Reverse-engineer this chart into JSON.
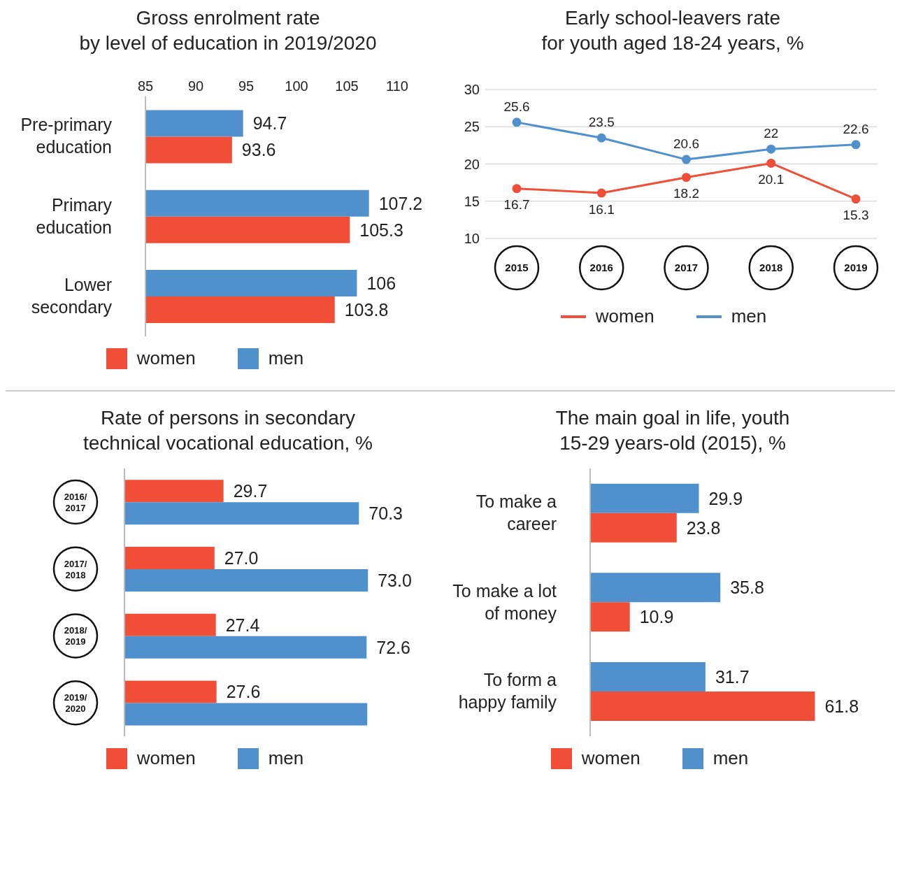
{
  "chart_data": [
    {
      "type": "bar",
      "orientation": "horizontal",
      "title": "Gross enrolment rate\nby level of education in 2019/2020",
      "categories": [
        "Pre-primary education",
        "Primary education",
        "Lower secondary"
      ],
      "series": [
        {
          "name": "men",
          "color": "#4f90cd",
          "values": [
            94.7,
            107.2,
            106
          ]
        },
        {
          "name": "women",
          "color": "#f04e37",
          "values": [
            93.6,
            105.3,
            103.8
          ]
        }
      ],
      "xlim": [
        85,
        110
      ],
      "xticks": [
        85,
        90,
        95,
        100,
        105,
        110
      ],
      "data_labels": true,
      "legend": "bottom"
    },
    {
      "type": "line",
      "title": "Early school-leavers rate\nfor youth aged 18-24 years, %",
      "categories": [
        "2015",
        "2016",
        "2017",
        "2018",
        "2019"
      ],
      "series": [
        {
          "name": "women",
          "color": "#f04e37",
          "values": [
            16.7,
            16.1,
            18.2,
            20.1,
            15.3
          ]
        },
        {
          "name": "men",
          "color": "#4f90cd",
          "values": [
            25.6,
            23.5,
            20.6,
            22,
            22.6
          ]
        }
      ],
      "ylim": [
        10,
        30
      ],
      "yticks": [
        10,
        15,
        20,
        25,
        30
      ],
      "grid": "y",
      "marker": "circle",
      "data_labels": true,
      "legend": "bottom right"
    },
    {
      "type": "bar",
      "orientation": "horizontal",
      "title": "Rate of persons in secondary\ntechnical vocational education, %",
      "categories": [
        "2016/2017",
        "2017/2018",
        "2018/2019",
        "2019/2020"
      ],
      "series": [
        {
          "name": "women",
          "color": "#f04e37",
          "values": [
            29.7,
            27.0,
            27.4,
            27.6
          ],
          "value_labels": [
            "29.7",
            "27.0",
            "27.4",
            "27.6"
          ]
        },
        {
          "name": "men",
          "color": "#4f90cd",
          "values": [
            70.3,
            73.0,
            72.6,
            72.8
          ],
          "value_labels": [
            "70.3",
            "73.0",
            "72.6",
            null
          ]
        }
      ],
      "tick_labels": "y",
      "legend": "bottom"
    },
    {
      "type": "bar",
      "orientation": "horizontal",
      "title": "The main goal in life, youth\n15-29 years-old (2015), %",
      "categories": [
        "To make a career",
        "To make a lot of money",
        "To form a happy family"
      ],
      "series": [
        {
          "name": "men",
          "color": "#4f90cd",
          "values": [
            29.9,
            35.8,
            31.7
          ]
        },
        {
          "name": "women",
          "color": "#f04e37",
          "values": [
            23.8,
            10.9,
            61.8
          ]
        }
      ],
      "tick_labels": "y",
      "data_labels": true,
      "legend": "bottom"
    }
  ]
}
